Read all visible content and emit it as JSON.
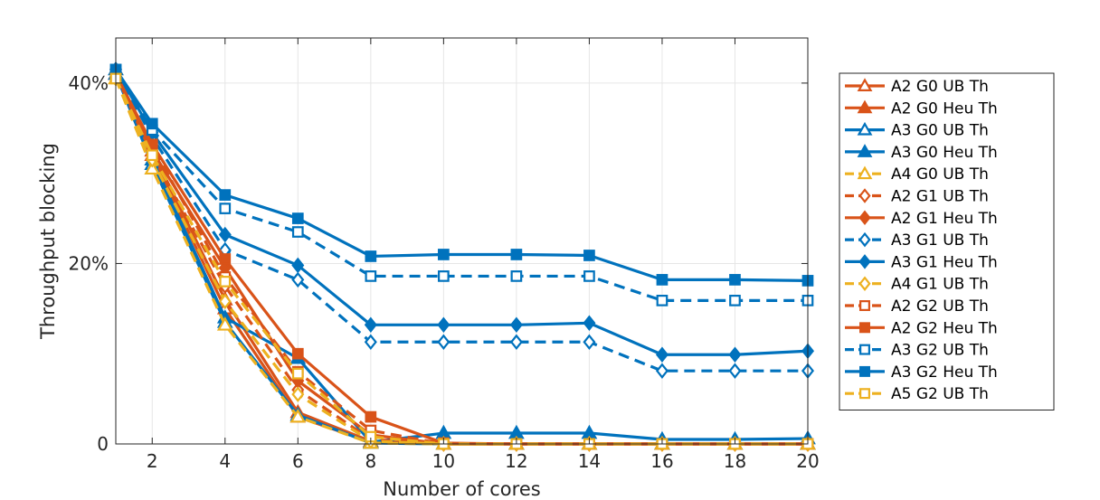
{
  "chart_data": {
    "type": "line",
    "title": "",
    "xlabel": "Number of cores",
    "ylabel": "Throughput blocking",
    "xlim": [
      1,
      20
    ],
    "ylim": [
      0,
      45
    ],
    "x": [
      1,
      2,
      4,
      6,
      8,
      10,
      12,
      14,
      16,
      18,
      20
    ],
    "xticks": [
      2,
      4,
      6,
      8,
      10,
      12,
      14,
      16,
      18,
      20
    ],
    "yticks": [
      0,
      20,
      40
    ],
    "ytick_labels": [
      "0",
      "20%",
      "40%"
    ],
    "grid": true,
    "legend_position": "outside-right",
    "colors": {
      "orange": "#D95319",
      "blue": "#0072BD",
      "yellow": "#EDB120"
    },
    "series": [
      {
        "name": "A2 G0 UB Th",
        "color": "#D95319",
        "dash": "solid",
        "marker": "triangle-hollow",
        "values": [
          41,
          32,
          15,
          3,
          0.2,
          0,
          0,
          0,
          0,
          0,
          0
        ]
      },
      {
        "name": "A2 G0 Heu Th",
        "color": "#D95319",
        "dash": "solid",
        "marker": "triangle-filled",
        "values": [
          41,
          32.5,
          16,
          3.5,
          0.3,
          0,
          0,
          0,
          0,
          0,
          0
        ]
      },
      {
        "name": "A3 G0 UB Th",
        "color": "#0072BD",
        "dash": "solid",
        "marker": "triangle-hollow",
        "values": [
          41,
          31,
          13.5,
          3.2,
          0.1,
          0,
          0,
          0,
          0,
          0,
          0
        ]
      },
      {
        "name": "A3 G0 Heu Th",
        "color": "#0072BD",
        "dash": "solid",
        "marker": "triangle-filled",
        "values": [
          41.5,
          31.5,
          14,
          9.5,
          0.2,
          1.2,
          1.2,
          1.2,
          0.5,
          0.5,
          0.6
        ]
      },
      {
        "name": "A4 G0 UB Th",
        "color": "#EDB120",
        "dash": "dashed",
        "marker": "triangle-hollow",
        "values": [
          40.5,
          30.5,
          13.2,
          3,
          0.1,
          0,
          0,
          0,
          0,
          0,
          0
        ]
      },
      {
        "name": "A2 G1 UB Th",
        "color": "#D95319",
        "dash": "dashed",
        "marker": "diamond-hollow",
        "values": [
          41,
          32,
          17.5,
          6,
          0.5,
          0,
          0,
          0,
          0,
          0,
          0
        ]
      },
      {
        "name": "A2 G1 Heu Th",
        "color": "#D95319",
        "dash": "solid",
        "marker": "diamond-filled",
        "values": [
          41,
          32.5,
          19.5,
          7,
          1,
          0,
          0,
          0,
          0,
          0,
          0
        ]
      },
      {
        "name": "A3 G1 UB Th",
        "color": "#0072BD",
        "dash": "dashed",
        "marker": "diamond-hollow",
        "values": [
          41.5,
          34,
          21.5,
          18.2,
          11.3,
          11.3,
          11.3,
          11.3,
          8.1,
          8.1,
          8.1
        ]
      },
      {
        "name": "A3 G1 Heu Th",
        "color": "#0072BD",
        "dash": "solid",
        "marker": "diamond-filled",
        "values": [
          41.5,
          34.5,
          23.2,
          19.8,
          13.2,
          13.2,
          13.2,
          13.4,
          9.9,
          9.9,
          10.3
        ]
      },
      {
        "name": "A4 G1 UB Th",
        "color": "#EDB120",
        "dash": "dashed",
        "marker": "diamond-hollow",
        "values": [
          40.5,
          31.5,
          15.8,
          5.5,
          0.3,
          0,
          0,
          0,
          0,
          0,
          0
        ]
      },
      {
        "name": "A2 G2 UB Th",
        "color": "#D95319",
        "dash": "dashed",
        "marker": "square-hollow",
        "values": [
          41,
          33,
          18.5,
          8,
          1.5,
          0,
          0,
          0,
          0,
          0,
          0
        ]
      },
      {
        "name": "A2 G2 Heu Th",
        "color": "#D95319",
        "dash": "solid",
        "marker": "square-filled",
        "values": [
          41,
          33.2,
          20.5,
          10,
          3,
          0.1,
          0,
          0,
          0,
          0,
          0
        ]
      },
      {
        "name": "A3 G2 UB Th",
        "color": "#0072BD",
        "dash": "dashed",
        "marker": "square-hollow",
        "values": [
          41.5,
          34.8,
          26.1,
          23.5,
          18.6,
          18.6,
          18.6,
          18.6,
          15.9,
          15.9,
          15.9
        ]
      },
      {
        "name": "A3 G2 Heu Th",
        "color": "#0072BD",
        "dash": "solid",
        "marker": "square-filled",
        "values": [
          41.5,
          35.5,
          27.6,
          25,
          20.8,
          21,
          21,
          20.9,
          18.2,
          18.2,
          18.1
        ]
      },
      {
        "name": "A5 G2 UB Th",
        "color": "#EDB120",
        "dash": "dashed",
        "marker": "square-hollow",
        "values": [
          40.5,
          32,
          18,
          7.8,
          0.8,
          0,
          0,
          0,
          0,
          0,
          0
        ]
      }
    ]
  }
}
